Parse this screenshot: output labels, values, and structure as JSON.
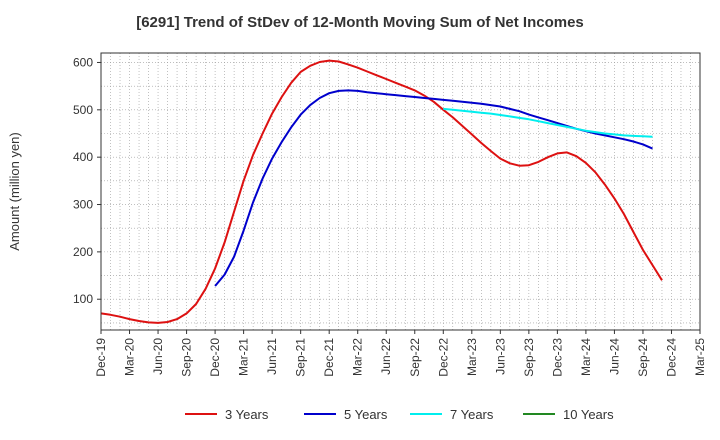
{
  "chart_data": {
    "type": "line",
    "title": "[6291]  Trend of StDev of 12-Month Moving Sum of Net Incomes",
    "xlabel": "",
    "ylabel": "Amount (million yen)",
    "ylim": [
      35,
      620
    ],
    "yticks": [
      100,
      200,
      300,
      400,
      500,
      600
    ],
    "x_tick_labels": [
      "Dec-19",
      "Mar-20",
      "Jun-20",
      "Sep-20",
      "Dec-20",
      "Mar-21",
      "Jun-21",
      "Sep-21",
      "Dec-21",
      "Mar-22",
      "Jun-22",
      "Sep-22",
      "Dec-22",
      "Mar-23",
      "Jun-23",
      "Sep-23",
      "Dec-23",
      "Mar-24",
      "Jun-24",
      "Sep-24",
      "Dec-24",
      "Mar-25"
    ],
    "grid": true,
    "legend_position": "bottom",
    "series": [
      {
        "name": "3 Years",
        "color": "#dd1111",
        "start_month_index": 0,
        "values": [
          70,
          67,
          63,
          58,
          54,
          51,
          50,
          52,
          58,
          70,
          90,
          122,
          165,
          220,
          285,
          350,
          405,
          450,
          492,
          527,
          557,
          580,
          593,
          601,
          604,
          602,
          596,
          589,
          581,
          573,
          565,
          557,
          549,
          541,
          530,
          517,
          500,
          484,
          466,
          448,
          430,
          413,
          397,
          387,
          382,
          383,
          390,
          400,
          408,
          410,
          402,
          388,
          368,
          342,
          313,
          280,
          242,
          204,
          172,
          140
        ]
      },
      {
        "name": "5 Years",
        "color": "#0000cc",
        "start_month_index": 12,
        "values": [
          128,
          152,
          190,
          245,
          305,
          355,
          397,
          432,
          463,
          490,
          510,
          525,
          535,
          540,
          541,
          540,
          537,
          535,
          533,
          531,
          529,
          527,
          525,
          523,
          521,
          519,
          517,
          515,
          513,
          510,
          507,
          502,
          497,
          490,
          484,
          478,
          472,
          466,
          460,
          455,
          450,
          446,
          442,
          438,
          433,
          427,
          418
        ]
      },
      {
        "name": "7 Years",
        "color": "#00eeee",
        "start_month_index": 36,
        "values": [
          502,
          500,
          498,
          496,
          494,
          492,
          489,
          486,
          483,
          480,
          476,
          472,
          468,
          464,
          460,
          456,
          453,
          450,
          448,
          446,
          445,
          444,
          443
        ]
      },
      {
        "name": "10 Years",
        "color": "#228822",
        "start_month_index": 0,
        "values": []
      }
    ]
  }
}
